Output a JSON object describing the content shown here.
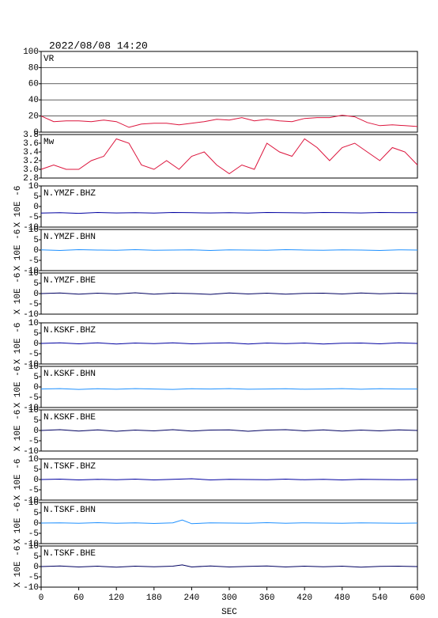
{
  "chart_data": [
    {
      "type": "line",
      "title": "2022/08/08 14:20",
      "label": "VR",
      "color": "#dc143c",
      "grid": true,
      "xlim": [
        0,
        600
      ],
      "ylim": [
        0,
        100
      ],
      "yticks": [
        0,
        20,
        40,
        60,
        80,
        100
      ],
      "x": [
        0,
        20,
        40,
        60,
        80,
        100,
        120,
        140,
        160,
        180,
        200,
        220,
        240,
        260,
        280,
        300,
        320,
        340,
        360,
        380,
        400,
        420,
        440,
        460,
        480,
        500,
        520,
        540,
        560,
        580,
        600
      ],
      "values": [
        20,
        13,
        14,
        14,
        13,
        15,
        13,
        6,
        10,
        11,
        11,
        9,
        11,
        13,
        16,
        15,
        18,
        14,
        16,
        14,
        13,
        17,
        18,
        18,
        21,
        19,
        12,
        8,
        9,
        8,
        7
      ]
    },
    {
      "type": "line",
      "label": "Mw",
      "color": "#dc143c",
      "grid": false,
      "xlim": [
        0,
        600
      ],
      "ylim": [
        2.8,
        3.8
      ],
      "yticks": [
        2.8,
        {
          "value": 3,
          "label": "3.0"
        },
        3.2,
        3.4,
        3.6,
        3.8
      ],
      "x": [
        0,
        20,
        40,
        60,
        80,
        100,
        120,
        140,
        160,
        180,
        200,
        220,
        240,
        260,
        280,
        300,
        320,
        340,
        360,
        380,
        400,
        420,
        440,
        460,
        480,
        500,
        520,
        540,
        560,
        580,
        600
      ],
      "values": [
        3.0,
        3.1,
        3.0,
        3.0,
        3.2,
        3.3,
        3.7,
        3.6,
        3.1,
        3.0,
        3.2,
        3.0,
        3.3,
        3.4,
        3.1,
        2.9,
        3.1,
        3.0,
        3.6,
        3.4,
        3.3,
        3.7,
        3.5,
        3.2,
        3.5,
        3.6,
        3.4,
        3.2,
        3.5,
        3.4,
        3.1
      ]
    },
    {
      "type": "line",
      "label": "N.YMZF.BHZ",
      "ylabel": "X 10E -6",
      "color": "#0000a0",
      "xlim": [
        0,
        600
      ],
      "ylim": [
        -10,
        10
      ],
      "yticks": [
        10,
        5,
        0,
        -5,
        -10
      ],
      "x": [
        0,
        30,
        60,
        90,
        120,
        150,
        180,
        210,
        240,
        270,
        300,
        330,
        360,
        390,
        420,
        450,
        480,
        510,
        540,
        570,
        600
      ],
      "values": [
        -3.2,
        -3.0,
        -3.3,
        -2.9,
        -3.1,
        -3.0,
        -3.2,
        -2.9,
        -3.0,
        -3.1,
        -3.0,
        -3.2,
        -2.9,
        -3.0,
        -3.1,
        -2.9,
        -3.0,
        -3.1,
        -2.9,
        -3.0,
        -3.0
      ]
    },
    {
      "type": "line",
      "label": "N.YMZF.BHN",
      "ylabel": "X 10E -6",
      "color": "#1e90ff",
      "xlim": [
        0,
        600
      ],
      "ylim": [
        -10,
        10
      ],
      "yticks": [
        10,
        5,
        0,
        -5,
        -10
      ],
      "x": [
        0,
        30,
        60,
        90,
        120,
        150,
        180,
        210,
        240,
        270,
        300,
        330,
        360,
        390,
        420,
        450,
        480,
        510,
        540,
        570,
        600
      ],
      "values": [
        0.1,
        -0.2,
        0.2,
        0,
        -0.1,
        0.2,
        -0.1,
        0,
        0.1,
        -0.2,
        0.1,
        0,
        -0.1,
        0.2,
        0,
        -0.1,
        0.1,
        0,
        -0.2,
        0.1,
        0
      ]
    },
    {
      "type": "line",
      "label": "N.YMZF.BHE",
      "ylabel": "X 10E -6",
      "color": "#000060",
      "xlim": [
        0,
        600
      ],
      "ylim": [
        -10,
        10
      ],
      "yticks": [
        10,
        5,
        0,
        -5,
        -10
      ],
      "x": [
        0,
        30,
        60,
        90,
        120,
        150,
        180,
        210,
        240,
        270,
        300,
        330,
        360,
        390,
        420,
        450,
        480,
        510,
        540,
        570,
        600
      ],
      "values": [
        0,
        0.3,
        -0.3,
        0.2,
        -0.2,
        0.4,
        -0.3,
        0.2,
        0,
        -0.4,
        0.3,
        -0.2,
        0.2,
        -0.3,
        0.1,
        0.2,
        -0.2,
        0.3,
        -0.1,
        0.2,
        0
      ]
    },
    {
      "type": "line",
      "label": "N.KSKF.BHZ",
      "ylabel": "X 10E -6",
      "color": "#0000a0",
      "xlim": [
        0,
        600
      ],
      "ylim": [
        -10,
        10
      ],
      "yticks": [
        10,
        5,
        0,
        -5,
        -10
      ],
      "x": [
        0,
        30,
        60,
        90,
        120,
        150,
        180,
        210,
        240,
        270,
        300,
        330,
        360,
        390,
        420,
        450,
        480,
        510,
        540,
        570,
        600
      ],
      "values": [
        0,
        0.3,
        -0.2,
        0.3,
        -0.3,
        0.2,
        -0.1,
        0.3,
        -0.2,
        0.1,
        0.3,
        -0.3,
        0.2,
        -0.1,
        0.2,
        -0.3,
        0.1,
        0.2,
        -0.2,
        0.3,
        0
      ]
    },
    {
      "type": "line",
      "label": "N.KSKF.BHN",
      "ylabel": "X 10E -6",
      "color": "#1e90ff",
      "xlim": [
        0,
        600
      ],
      "ylim": [
        -10,
        10
      ],
      "yticks": [
        10,
        5,
        0,
        -5,
        -10
      ],
      "x": [
        0,
        30,
        60,
        90,
        120,
        150,
        180,
        210,
        240,
        270,
        300,
        330,
        360,
        390,
        420,
        450,
        480,
        510,
        540,
        570,
        600
      ],
      "values": [
        -1.0,
        -0.8,
        -1.2,
        -0.9,
        -1.1,
        -0.8,
        -1.0,
        -1.2,
        -0.9,
        -1.0,
        -0.8,
        -1.1,
        -1.0,
        -0.9,
        -1.1,
        -1.0,
        -0.8,
        -1.1,
        -0.9,
        -1.0,
        -1.0
      ]
    },
    {
      "type": "line",
      "label": "N.KSKF.BHE",
      "ylabel": "X 10E -6",
      "color": "#000060",
      "xlim": [
        0,
        600
      ],
      "ylim": [
        -10,
        10
      ],
      "yticks": [
        10,
        5,
        0,
        -5,
        -10
      ],
      "x": [
        0,
        30,
        60,
        90,
        120,
        150,
        180,
        210,
        240,
        270,
        300,
        330,
        360,
        390,
        420,
        450,
        480,
        510,
        540,
        570,
        600
      ],
      "values": [
        0,
        0.4,
        -0.3,
        0.3,
        -0.4,
        0.2,
        -0.2,
        0.4,
        -0.3,
        0.2,
        0.3,
        -0.4,
        0.2,
        0.4,
        -0.2,
        0.3,
        -0.3,
        0.2,
        -0.2,
        0.3,
        0
      ]
    },
    {
      "type": "line",
      "label": "N.TSKF.BHZ",
      "ylabel": "X 10E -6",
      "color": "#0000a0",
      "xlim": [
        0,
        600
      ],
      "ylim": [
        -10,
        10
      ],
      "yticks": [
        10,
        5,
        0,
        -5,
        -10
      ],
      "x": [
        0,
        30,
        60,
        90,
        120,
        150,
        180,
        210,
        240,
        270,
        300,
        330,
        360,
        390,
        420,
        450,
        480,
        510,
        540,
        570,
        600
      ],
      "values": [
        0,
        0.2,
        -0.2,
        0.1,
        -0.1,
        0.2,
        -0.2,
        0.1,
        0.4,
        -0.2,
        0.1,
        0,
        -0.1,
        0.2,
        -0.1,
        0.1,
        -0.2,
        0.1,
        0,
        -0.1,
        0
      ]
    },
    {
      "type": "line",
      "label": "N.TSKF.BHN",
      "ylabel": "X 10E -6",
      "color": "#1e90ff",
      "xlim": [
        0,
        600
      ],
      "ylim": [
        -10,
        10
      ],
      "yticks": [
        10,
        5,
        0,
        -5,
        -10
      ],
      "x": [
        0,
        30,
        60,
        90,
        120,
        150,
        180,
        210,
        225,
        240,
        270,
        300,
        330,
        360,
        390,
        420,
        450,
        480,
        510,
        540,
        570,
        600
      ],
      "values": [
        0,
        0.1,
        -0.1,
        0.2,
        -0.1,
        0.1,
        -0.2,
        0.1,
        1.5,
        -0.3,
        0.1,
        0,
        -0.1,
        0.2,
        -0.1,
        0.1,
        0,
        -0.1,
        0.1,
        0,
        -0.1,
        0
      ]
    },
    {
      "type": "line",
      "label": "N.TSKF.BHE",
      "ylabel": "X 10E -6",
      "color": "#000060",
      "xlim": [
        0,
        600
      ],
      "ylim": [
        -10,
        10
      ],
      "yticks": [
        10,
        5,
        0,
        -5,
        -10
      ],
      "xlabel": "SEC",
      "xticks": [
        0,
        60,
        120,
        180,
        240,
        300,
        360,
        420,
        480,
        540,
        600
      ],
      "x": [
        0,
        30,
        60,
        90,
        120,
        150,
        180,
        210,
        225,
        240,
        270,
        300,
        330,
        360,
        390,
        420,
        450,
        480,
        510,
        540,
        570,
        600
      ],
      "values": [
        0,
        0.3,
        -0.2,
        0.2,
        -0.3,
        0.2,
        -0.1,
        0.2,
        0.8,
        -0.2,
        0.3,
        -0.2,
        0.1,
        0.3,
        -0.2,
        0.2,
        -0.1,
        0.2,
        -0.3,
        0.1,
        0.2,
        0
      ]
    }
  ]
}
